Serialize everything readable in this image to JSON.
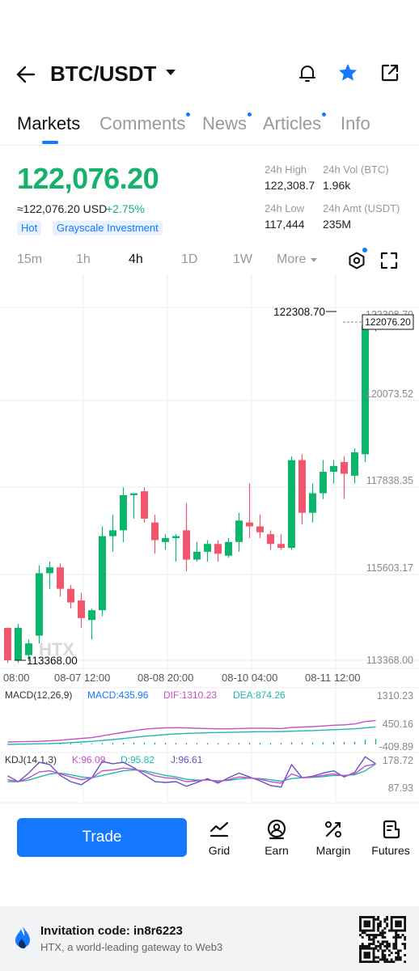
{
  "header": {
    "pair": "BTC/USDT"
  },
  "tabs": [
    {
      "label": "Markets",
      "active": true,
      "dot": false
    },
    {
      "label": "Comments",
      "active": false,
      "dot": true
    },
    {
      "label": "News",
      "active": false,
      "dot": true
    },
    {
      "label": "Articles",
      "active": false,
      "dot": true
    },
    {
      "label": "Info",
      "active": false,
      "dot": false
    }
  ],
  "ticker": {
    "last_price": "122,076.20",
    "usd_equiv": "≈122,076.20 USD",
    "change": "+2.75%",
    "tags": [
      "Hot",
      "Grayscale Investment"
    ],
    "high_label": "24h High",
    "high_value": "122,308.7",
    "vol_label": "24h Vol (BTC)",
    "vol_value": "1.96k",
    "low_label": "24h Low",
    "low_value": "117,444",
    "amt_label": "24h Amt (USDT)",
    "amt_value": "235M"
  },
  "timeframes": {
    "items": [
      "15m",
      "1h",
      "4h",
      "1D",
      "1W"
    ],
    "active": "4h",
    "more_label": "More"
  },
  "chart": {
    "price_axis": [
      "122308.70",
      "120073.52",
      "117838.35",
      "115603.17",
      "113368.00"
    ],
    "max_label": "122308.70",
    "min_label": "113368.00",
    "last_tag": "122076.20",
    "watermark": "HTX",
    "time_axis": [
      "08:00",
      "08-07 12:00",
      "08-08 20:00",
      "08-10 04:00",
      "08-11 12:00"
    ],
    "macd": {
      "params": "MACD(12,26,9)",
      "macd": "MACD:435.96",
      "dif": "DIF:1310.23",
      "dea": "DEA:874.26",
      "axis": [
        "1310.23",
        "450.16",
        "-409.89"
      ]
    },
    "kdj": {
      "params": "KDJ(14,1,3)",
      "k": "K:96.09",
      "d": "D:95.82",
      "j": "J:96.61",
      "axis": [
        "178.72",
        "87.93"
      ]
    },
    "colors": {
      "up": "#0ab66c",
      "down": "#f2566c",
      "accent": "#1677ff"
    }
  },
  "chart_data": {
    "type": "candlestick",
    "ylim": [
      113368.0,
      122308.7
    ],
    "candles": [
      [
        114200,
        114200,
        113300,
        113368
      ],
      [
        113368,
        114300,
        113300,
        114200
      ],
      [
        113500,
        113900,
        113350,
        113800
      ],
      [
        114000,
        115800,
        113800,
        115600
      ],
      [
        115600,
        115900,
        115200,
        115750
      ],
      [
        115750,
        115850,
        115000,
        115200
      ],
      [
        115200,
        115300,
        114700,
        114850
      ],
      [
        114900,
        115100,
        114200,
        114450
      ],
      [
        114400,
        114700,
        113900,
        114650
      ],
      [
        114650,
        116800,
        114500,
        116550
      ],
      [
        116550,
        117100,
        116150,
        116700
      ],
      [
        116700,
        117800,
        116400,
        117600
      ],
      [
        117600,
        117650,
        117000,
        117650
      ],
      [
        117700,
        117800,
        116900,
        117000
      ],
      [
        116900,
        117100,
        116100,
        116450
      ],
      [
        116400,
        116600,
        116200,
        116500
      ],
      [
        116500,
        116600,
        115900,
        116550
      ],
      [
        116700,
        117400,
        115650,
        115950
      ],
      [
        115950,
        116400,
        115900,
        116150
      ],
      [
        116150,
        116450,
        115900,
        116350
      ],
      [
        116350,
        116450,
        115900,
        116100
      ],
      [
        116050,
        116500,
        116000,
        116400
      ],
      [
        116400,
        117150,
        116150,
        116950
      ],
      [
        116900,
        117900,
        116500,
        116800
      ],
      [
        116800,
        117100,
        116500,
        116650
      ],
      [
        116600,
        116700,
        116200,
        116350
      ],
      [
        116350,
        116600,
        116200,
        116250
      ],
      [
        116250,
        118600,
        116200,
        118500
      ],
      [
        118500,
        118650,
        116850,
        117150
      ],
      [
        117150,
        117900,
        116900,
        117650
      ],
      [
        117650,
        118500,
        117500,
        118200
      ],
      [
        118200,
        118500,
        117900,
        118350
      ],
      [
        118450,
        118600,
        117500,
        118150
      ],
      [
        118100,
        118800,
        117900,
        118700
      ],
      [
        118650,
        122100,
        118450,
        121950
      ],
      [
        121950,
        122308.7,
        121800,
        122076.2
      ]
    ],
    "macd": {
      "histogram": [
        0.04,
        0.05,
        0.04,
        0.06,
        0.08,
        0.09,
        0.09,
        0.08,
        0.07,
        0.1,
        0.12,
        0.14,
        0.15,
        0.16,
        0.15,
        0.13,
        0.12,
        0.12,
        0.11,
        0.11,
        0.11,
        0.12,
        0.13,
        0.14,
        0.13,
        0.12,
        0.12,
        0.18,
        0.16,
        0.16,
        0.18,
        0.2,
        0.2,
        0.22,
        0.4,
        0.45
      ],
      "dif": [
        0.02,
        0.03,
        0.04,
        0.05,
        0.07,
        0.1,
        0.14,
        0.18,
        0.22,
        0.3,
        0.38,
        0.46,
        0.53,
        0.6,
        0.64,
        0.66,
        0.67,
        0.66,
        0.64,
        0.63,
        0.62,
        0.62,
        0.63,
        0.65,
        0.65,
        0.64,
        0.63,
        0.68,
        0.7,
        0.72,
        0.75,
        0.78,
        0.8,
        0.84,
        0.95,
        1.0
      ],
      "dea": [
        0.0,
        0.01,
        0.02,
        0.03,
        0.04,
        0.06,
        0.08,
        0.11,
        0.14,
        0.18,
        0.22,
        0.27,
        0.32,
        0.37,
        0.41,
        0.45,
        0.48,
        0.5,
        0.52,
        0.53,
        0.54,
        0.55,
        0.56,
        0.57,
        0.58,
        0.58,
        0.59,
        0.6,
        0.62,
        0.63,
        0.65,
        0.67,
        0.69,
        0.71,
        0.75,
        0.8
      ]
    },
    "kdj": {
      "k": [
        0.55,
        0.5,
        0.6,
        0.75,
        0.78,
        0.7,
        0.62,
        0.55,
        0.6,
        0.78,
        0.8,
        0.85,
        0.82,
        0.75,
        0.65,
        0.6,
        0.58,
        0.5,
        0.52,
        0.55,
        0.5,
        0.55,
        0.62,
        0.6,
        0.56,
        0.5,
        0.46,
        0.7,
        0.6,
        0.62,
        0.66,
        0.7,
        0.65,
        0.7,
        0.9,
        0.96
      ],
      "d": [
        0.5,
        0.5,
        0.54,
        0.62,
        0.7,
        0.72,
        0.68,
        0.62,
        0.6,
        0.66,
        0.72,
        0.78,
        0.8,
        0.78,
        0.72,
        0.66,
        0.62,
        0.56,
        0.54,
        0.54,
        0.52,
        0.53,
        0.57,
        0.59,
        0.58,
        0.55,
        0.51,
        0.58,
        0.6,
        0.61,
        0.63,
        0.66,
        0.66,
        0.68,
        0.78,
        0.96
      ],
      "j": [
        0.65,
        0.5,
        0.72,
        1.0,
        0.94,
        0.66,
        0.5,
        0.42,
        0.6,
        1.02,
        0.96,
        1.0,
        0.86,
        0.68,
        0.5,
        0.48,
        0.5,
        0.38,
        0.48,
        0.58,
        0.46,
        0.6,
        0.72,
        0.62,
        0.52,
        0.4,
        0.36,
        0.94,
        0.6,
        0.64,
        0.72,
        0.78,
        0.62,
        0.74,
        1.14,
        0.96
      ]
    }
  },
  "bottom_bar": {
    "trade_label": "Trade",
    "items": [
      "Grid",
      "Earn",
      "Margin",
      "Futures"
    ]
  },
  "invite": {
    "code_text": "Invitation code: in8r6223",
    "subtitle": "HTX, a world-leading gateway to Web3"
  }
}
